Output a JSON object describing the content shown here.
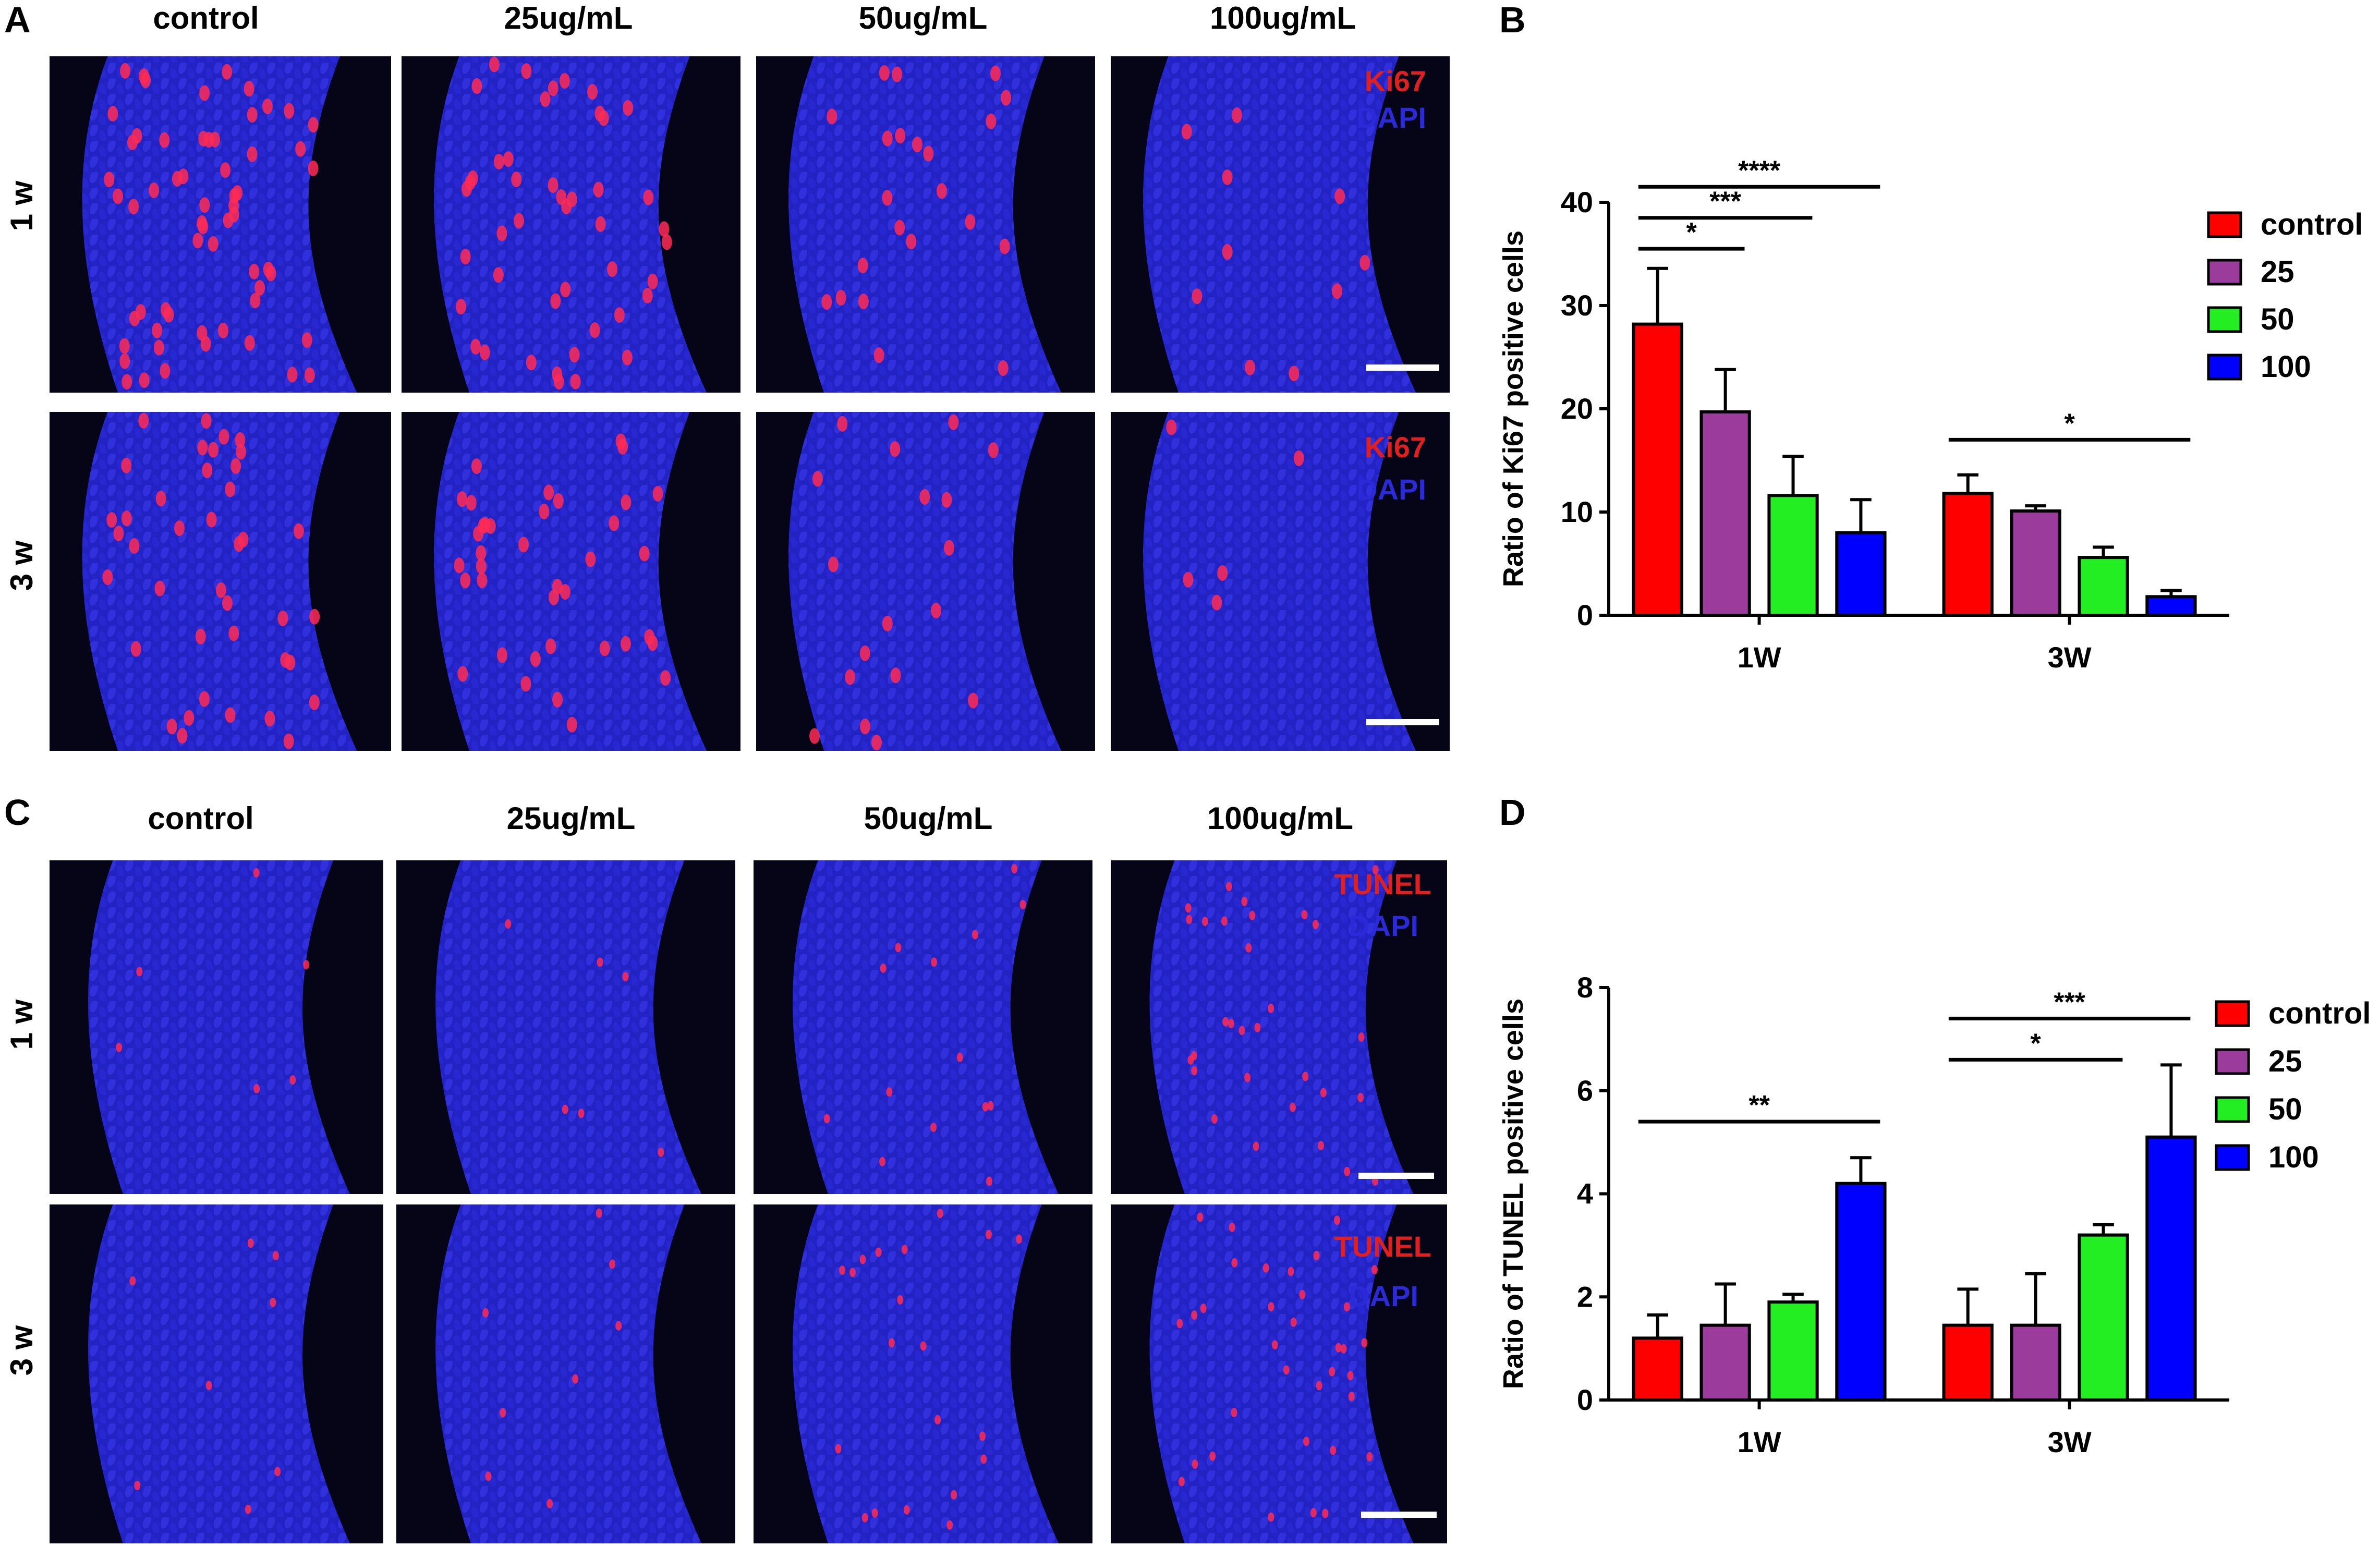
{
  "panels": {
    "A": "A",
    "B": "B",
    "C": "C",
    "D": "D"
  },
  "micrographs": {
    "columns": [
      "control",
      "25ug/mL",
      "50ug/mL",
      "100ug/mL"
    ],
    "rows": [
      "1 w",
      "3 w"
    ],
    "ki67": {
      "stain": "Ki67",
      "counter": "DAPI"
    },
    "tunel": {
      "stain": "TUNEL",
      "counter": "DAPI"
    }
  },
  "colors": {
    "control": "#ff0000",
    "25": "#9b3b9b",
    "50": "#22ee22",
    "100": "#0000ff",
    "micrograph_bg": "#050517",
    "nuclei_blue": "#2323c4",
    "marker_red": "#ff2a55"
  },
  "chart_data": [
    {
      "panel": "B",
      "type": "bar",
      "categories": [
        "1W",
        "3W"
      ],
      "ylabel": "Ratio of Ki67 positive cells",
      "ylim": [
        0,
        40
      ],
      "yticks": [
        0,
        10,
        20,
        30,
        40
      ],
      "legend_position": "top-right",
      "series": [
        {
          "name": "control",
          "values": [
            28.2,
            11.8
          ],
          "errors": [
            5.4,
            1.8
          ]
        },
        {
          "name": "25",
          "values": [
            19.7,
            10.1
          ],
          "errors": [
            4.1,
            0.5
          ]
        },
        {
          "name": "50",
          "values": [
            11.6,
            5.6
          ],
          "errors": [
            3.8,
            1.0
          ]
        },
        {
          "name": "100",
          "values": [
            8.0,
            1.8
          ],
          "errors": [
            3.2,
            0.6
          ]
        }
      ],
      "significance": [
        {
          "label": "****",
          "group": 0,
          "from": 0,
          "to": 3,
          "y": 41.5
        },
        {
          "label": "***",
          "group": 0,
          "from": 0,
          "to": 2,
          "y": 38.5
        },
        {
          "label": "*",
          "group": 0,
          "from": 0,
          "to": 1,
          "y": 35.5
        },
        {
          "label": "*",
          "group": 1,
          "from": 0,
          "to": 3,
          "y": 17.0
        }
      ]
    },
    {
      "panel": "D",
      "type": "bar",
      "categories": [
        "1W",
        "3W"
      ],
      "ylabel": "Ratio of TUNEL positive cells",
      "ylim": [
        0,
        8
      ],
      "yticks": [
        0,
        2,
        4,
        6,
        8
      ],
      "legend_position": "top-right",
      "series": [
        {
          "name": "control",
          "values": [
            1.2,
            1.45
          ],
          "errors": [
            0.45,
            0.7
          ]
        },
        {
          "name": "25",
          "values": [
            1.45,
            1.45
          ],
          "errors": [
            0.8,
            1.0
          ]
        },
        {
          "name": "50",
          "values": [
            1.9,
            3.2
          ],
          "errors": [
            0.15,
            0.2
          ]
        },
        {
          "name": "100",
          "values": [
            4.2,
            5.1
          ],
          "errors": [
            0.5,
            1.4
          ]
        }
      ],
      "significance": [
        {
          "label": "**",
          "group": 0,
          "from": 0,
          "to": 3,
          "y": 5.4
        },
        {
          "label": "***",
          "group": 1,
          "from": 0,
          "to": 3,
          "y": 7.4
        },
        {
          "label": "*",
          "group": 1,
          "from": 0,
          "to": 2,
          "y": 6.6
        }
      ]
    }
  ]
}
